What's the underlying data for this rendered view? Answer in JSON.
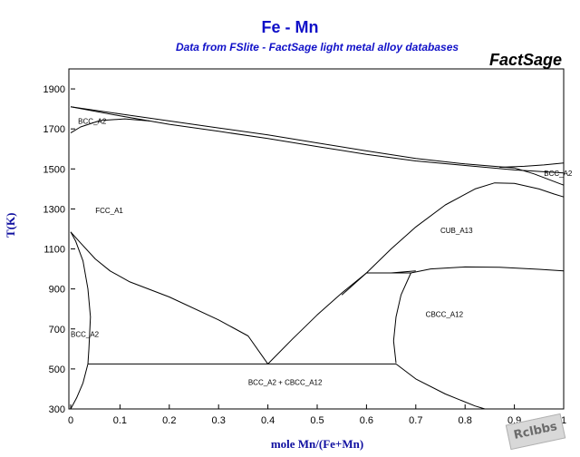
{
  "chart_data": {
    "type": "line",
    "title": "Fe - Mn",
    "subtitle": "Data from FSlite - FactSage light metal alloy databases",
    "brand": "FactSage",
    "xlabel": "mole Mn/(Fe+Mn)",
    "ylabel": "T(K)",
    "xlim": [
      0,
      1
    ],
    "ylim": [
      300,
      2000
    ],
    "x_ticks": [
      0,
      0.1,
      0.2,
      0.3,
      0.4,
      0.5,
      0.6,
      0.7,
      0.8,
      0.9,
      1
    ],
    "x_tick_labels": [
      "0",
      "0.1",
      "0.2",
      "0.3",
      "0.4",
      "0.5",
      "0.6",
      "0.7",
      "0.8",
      "0.9",
      "1"
    ],
    "y_ticks": [
      300,
      500,
      700,
      900,
      1100,
      1300,
      1500,
      1700,
      1900
    ],
    "y_tick_labels": [
      "300",
      "500",
      "700",
      "900",
      "1100",
      "1300",
      "1500",
      "1700",
      "1900"
    ],
    "grid": false,
    "series": [
      {
        "values": [
          [
            0,
            1811
          ],
          [
            0.1,
            1775
          ],
          [
            0.2,
            1740
          ],
          [
            0.3,
            1705
          ],
          [
            0.4,
            1670
          ],
          [
            0.5,
            1630
          ],
          [
            0.6,
            1590
          ],
          [
            0.7,
            1552
          ],
          [
            0.8,
            1525
          ],
          [
            0.9,
            1505
          ],
          [
            0.94,
            1475
          ],
          [
            1.0,
            1419
          ]
        ]
      },
      {
        "values": [
          [
            0,
            1811
          ],
          [
            0.1,
            1765
          ],
          [
            0.2,
            1723
          ],
          [
            0.3,
            1688
          ],
          [
            0.4,
            1652
          ],
          [
            0.5,
            1612
          ],
          [
            0.6,
            1573
          ],
          [
            0.7,
            1540
          ],
          [
            0.8,
            1517
          ],
          [
            0.9,
            1495
          ],
          [
            1.0,
            1480
          ]
        ]
      },
      {
        "values": [
          [
            0,
            1680
          ],
          [
            0.02,
            1710
          ],
          [
            0.06,
            1742
          ],
          [
            0.11,
            1750
          ],
          [
            0.16,
            1740
          ]
        ]
      },
      {
        "values": [
          [
            0.87,
            1508
          ],
          [
            0.92,
            1513
          ],
          [
            0.96,
            1520
          ],
          [
            1.0,
            1530
          ]
        ]
      },
      {
        "values": [
          [
            0.55,
            870
          ],
          [
            0.6,
            980
          ],
          [
            0.65,
            1100
          ],
          [
            0.7,
            1210
          ],
          [
            0.76,
            1320
          ],
          [
            0.82,
            1400
          ],
          [
            0.86,
            1430
          ],
          [
            0.9,
            1428
          ],
          [
            0.95,
            1400
          ],
          [
            0.98,
            1375
          ],
          [
            1.0,
            1360
          ]
        ]
      },
      {
        "values": [
          [
            0,
            1185
          ],
          [
            0.02,
            1130
          ],
          [
            0.05,
            1050
          ],
          [
            0.08,
            990
          ],
          [
            0.12,
            935
          ],
          [
            0.2,
            860
          ],
          [
            0.3,
            745
          ],
          [
            0.36,
            665
          ],
          [
            0.4,
            525
          ]
        ]
      },
      {
        "values": [
          [
            0.4,
            525
          ],
          [
            0.45,
            650
          ],
          [
            0.5,
            770
          ],
          [
            0.55,
            880
          ],
          [
            0.6,
            980
          ],
          [
            0.65,
            980
          ],
          [
            0.7,
            990
          ]
        ]
      },
      {
        "values": [
          [
            0.6,
            980
          ],
          [
            0.69,
            980
          ]
        ]
      },
      {
        "values": [
          [
            0.69,
            980
          ],
          [
            0.73,
            1000
          ],
          [
            0.8,
            1010
          ],
          [
            0.87,
            1008
          ],
          [
            0.95,
            998
          ],
          [
            1.0,
            990
          ]
        ]
      },
      {
        "values": [
          [
            0.69,
            980
          ],
          [
            0.67,
            870
          ],
          [
            0.66,
            760
          ],
          [
            0.655,
            640
          ],
          [
            0.66,
            530
          ]
        ]
      },
      {
        "values": [
          [
            0.035,
            525
          ],
          [
            0.66,
            525
          ]
        ]
      },
      {
        "values": [
          [
            0.66,
            525
          ],
          [
            0.7,
            450
          ],
          [
            0.76,
            375
          ],
          [
            0.82,
            315
          ],
          [
            0.84,
            300
          ]
        ]
      },
      {
        "values": [
          [
            0,
            1185
          ],
          [
            0.01,
            1140
          ],
          [
            0.025,
            1040
          ],
          [
            0.035,
            900
          ],
          [
            0.04,
            760
          ],
          [
            0.037,
            600
          ],
          [
            0.035,
            525
          ]
        ]
      },
      {
        "values": [
          [
            0.035,
            525
          ],
          [
            0.025,
            430
          ],
          [
            0.012,
            355
          ],
          [
            0,
            300
          ]
        ]
      }
    ],
    "annotations": [
      {
        "text": "BCC_A2",
        "x": 0.015,
        "y": 1725
      },
      {
        "text": "FCC_A1",
        "x": 0.05,
        "y": 1280
      },
      {
        "text": "BCC_A2",
        "x": 0.96,
        "y": 1465
      },
      {
        "text": "CUB_A13",
        "x": 0.75,
        "y": 1180
      },
      {
        "text": "CBCC_A12",
        "x": 0.72,
        "y": 760
      },
      {
        "text": "BCC_A2",
        "x": 0.0,
        "y": 660
      },
      {
        "text": "BCC_A2 + CBCC_A12",
        "x": 0.36,
        "y": 420
      }
    ]
  },
  "watermark": "Rclbbs"
}
